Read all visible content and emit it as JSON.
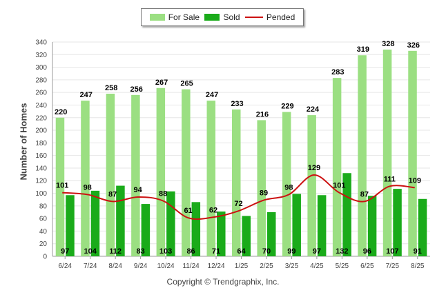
{
  "chart_data": {
    "type": "bar",
    "categories": [
      "6/24",
      "7/24",
      "8/24",
      "9/24",
      "10/24",
      "11/24",
      "12/24",
      "1/25",
      "2/25",
      "3/25",
      "4/25",
      "5/25",
      "6/25",
      "7/25",
      "8/25"
    ],
    "series": [
      {
        "name": "For Sale",
        "type": "bar",
        "color": "#9bdf82",
        "values": [
          220,
          247,
          258,
          256,
          267,
          265,
          247,
          233,
          216,
          229,
          224,
          283,
          319,
          328,
          326
        ]
      },
      {
        "name": "Sold",
        "type": "bar",
        "color": "#1aab1a",
        "values": [
          97,
          104,
          112,
          83,
          103,
          86,
          71,
          64,
          70,
          99,
          97,
          132,
          96,
          107,
          91
        ]
      },
      {
        "name": "Pended",
        "type": "line",
        "color": "#cc1111",
        "values": [
          101,
          98,
          87,
          94,
          88,
          61,
          62,
          72,
          89,
          98,
          129,
          101,
          87,
          111,
          109
        ]
      }
    ],
    "ylabel": "Number of Homes",
    "xlabel": "",
    "ylim": [
      0,
      340
    ],
    "yticks": [
      0,
      20,
      40,
      60,
      80,
      100,
      120,
      140,
      160,
      180,
      200,
      220,
      240,
      260,
      280,
      300,
      320,
      340
    ],
    "grid": true,
    "legend_position": "top-center"
  },
  "footer": "Copyright © Trendgraphix, Inc."
}
